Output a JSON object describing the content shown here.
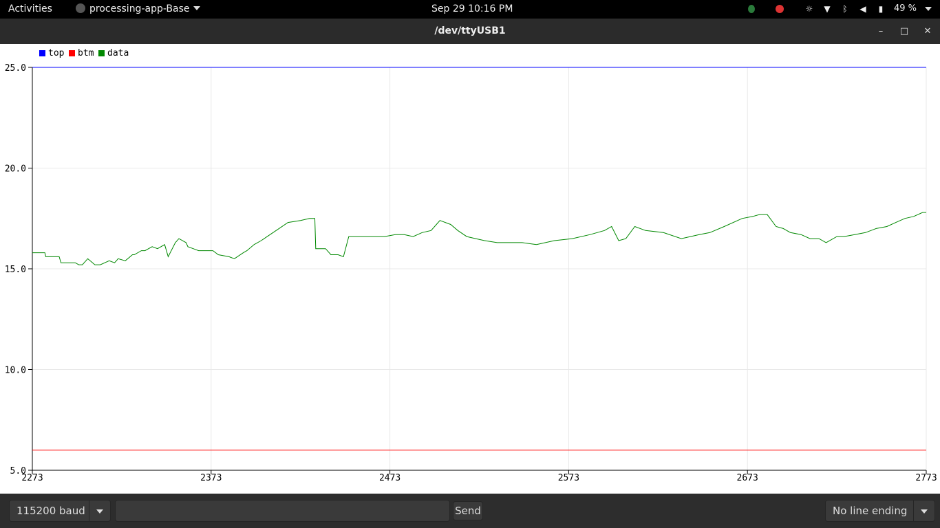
{
  "topbar": {
    "activities": "Activities",
    "app_name": "processing-app-Base",
    "clock": "Sep 29  10:16 PM",
    "battery": "49 %"
  },
  "window": {
    "title": "/dev/ttyUSB1"
  },
  "bottombar": {
    "baud": "115200 baud",
    "input_value": "",
    "send": "Send",
    "line_ending": "No line ending"
  },
  "colors": {
    "top": "#0000ff",
    "btm": "#ff0000",
    "data": "#008800"
  },
  "chart_data": {
    "type": "line",
    "title": "",
    "xlabel": "",
    "ylabel": "",
    "xlim": [
      2273,
      2773
    ],
    "ylim": [
      5.0,
      25.0
    ],
    "x_ticks": [
      "2273",
      "2373",
      "2473",
      "2573",
      "2673",
      "2773"
    ],
    "y_ticks": [
      "25.0",
      "20.0",
      "15.0",
      "10.0",
      "5.0"
    ],
    "legend": [
      "top",
      "btm",
      "data"
    ],
    "legend_position": "top-left",
    "grid": true,
    "series": [
      {
        "name": "top",
        "color": "#0000ff",
        "x": [
          2273,
          2773
        ],
        "y": [
          25.0,
          25.0
        ]
      },
      {
        "name": "btm",
        "color": "#ff0000",
        "x": [
          2273,
          2773
        ],
        "y": [
          6.0,
          6.0
        ]
      },
      {
        "name": "data",
        "color": "#008800",
        "x": [
          2273,
          2280,
          2280.5,
          2288,
          2289,
          2297,
          2299,
          2301,
          2304,
          2308,
          2311,
          2316,
          2319,
          2321,
          2325,
          2329,
          2330,
          2334,
          2336,
          2340,
          2343,
          2347,
          2349,
          2353,
          2355,
          2359,
          2360,
          2363,
          2366,
          2368,
          2369,
          2374,
          2377,
          2383,
          2386,
          2391,
          2393,
          2397,
          2401,
          2406,
          2411,
          2416,
          2423,
          2428,
          2431,
          2431.5,
          2433,
          2437,
          2440,
          2444,
          2447,
          2450,
          2453,
          2458,
          2463,
          2470,
          2476,
          2481,
          2486,
          2491,
          2496,
          2501,
          2507,
          2511,
          2516,
          2521,
          2526,
          2533,
          2539,
          2547,
          2555,
          2565,
          2575,
          2585,
          2593,
          2597,
          2601,
          2605,
          2610,
          2616,
          2626,
          2636,
          2646,
          2652,
          2660,
          2670,
          2676,
          2680,
          2684,
          2689,
          2693,
          2697,
          2703,
          2708,
          2713,
          2717,
          2723,
          2727,
          2733,
          2739,
          2745,
          2751,
          2756,
          2761,
          2766,
          2771,
          2773
        ],
        "y": [
          15.8,
          15.8,
          15.6,
          15.6,
          15.3,
          15.3,
          15.2,
          15.2,
          15.5,
          15.2,
          15.2,
          15.4,
          15.3,
          15.5,
          15.4,
          15.7,
          15.7,
          15.9,
          15.9,
          16.1,
          16.0,
          16.2,
          15.6,
          16.3,
          16.5,
          16.3,
          16.1,
          16.0,
          15.9,
          15.9,
          15.9,
          15.9,
          15.7,
          15.6,
          15.5,
          15.8,
          15.9,
          16.2,
          16.4,
          16.7,
          17.0,
          17.3,
          17.4,
          17.5,
          17.5,
          16.0,
          16.0,
          16.0,
          15.7,
          15.7,
          15.6,
          16.6,
          16.6,
          16.6,
          16.6,
          16.6,
          16.7,
          16.7,
          16.6,
          16.8,
          16.9,
          17.4,
          17.2,
          16.9,
          16.6,
          16.5,
          16.4,
          16.3,
          16.3,
          16.3,
          16.2,
          16.4,
          16.5,
          16.7,
          16.9,
          17.1,
          16.4,
          16.5,
          17.1,
          16.9,
          16.8,
          16.5,
          16.7,
          16.8,
          17.1,
          17.5,
          17.6,
          17.7,
          17.7,
          17.1,
          17.0,
          16.8,
          16.7,
          16.5,
          16.5,
          16.3,
          16.6,
          16.6,
          16.7,
          16.8,
          17.0,
          17.1,
          17.3,
          17.5,
          17.6,
          17.8,
          17.8
        ]
      }
    ]
  }
}
